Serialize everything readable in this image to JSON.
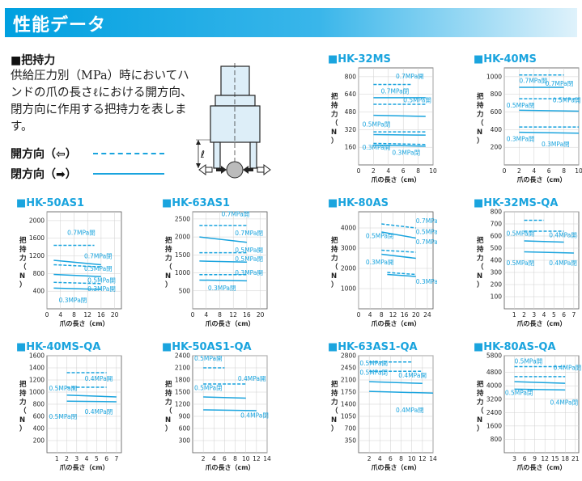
{
  "header": {
    "title": "性能データ"
  },
  "section": {
    "title": "■把持力"
  },
  "description": "供給圧力別（MPa）時においてハンドの爪の長さℓにおける開方向、閉方向に作用する把持力を表します。",
  "legend": {
    "open_label": "開方向（⇦）",
    "close_label": "閉方向（➡）"
  },
  "diagram": {
    "length_symbol": "ℓ"
  },
  "chart_data": [
    {
      "type": "line",
      "title": "■HK-32MS",
      "xlabel": "爪の長さ（cm）",
      "ylabel": "把持力（N）",
      "xlim": [
        0,
        10
      ],
      "ylim": [
        0,
        880
      ],
      "xticks": [
        0,
        2,
        4,
        6,
        8,
        10
      ],
      "yticks": [
        160,
        320,
        480,
        640,
        800
      ],
      "series": [
        {
          "style": "open",
          "x": [
            2,
            7
          ],
          "values": [
            730,
            730
          ]
        },
        {
          "style": "close",
          "x": [
            2,
            9
          ],
          "values": [
            610,
            610
          ]
        },
        {
          "style": "open",
          "x": [
            2,
            9
          ],
          "values": [
            550,
            550
          ]
        },
        {
          "style": "close",
          "x": [
            2,
            9
          ],
          "values": [
            450,
            440
          ]
        },
        {
          "style": "open",
          "x": [
            2,
            9
          ],
          "values": [
            300,
            300
          ]
        },
        {
          "style": "close",
          "x": [
            2,
            9
          ],
          "values": [
            275,
            270
          ]
        },
        {
          "style": "open",
          "x": [
            2,
            9
          ],
          "values": [
            195,
            185
          ]
        },
        {
          "style": "close",
          "x": [
            2,
            9
          ],
          "values": [
            180,
            170
          ]
        }
      ],
      "labels": [
        {
          "text": "0.7MPa開",
          "x": 5,
          "y": 785
        },
        {
          "text": "0.7MPa閉",
          "x": 3,
          "y": 650
        },
        {
          "text": "0.5MPa開",
          "x": 6,
          "y": 570
        },
        {
          "text": "0.5MPa閉",
          "x": 0.5,
          "y": 350
        },
        {
          "text": "0.3MPa開",
          "x": 0.5,
          "y": 140
        },
        {
          "text": "0.3MPa閉",
          "x": 4.5,
          "y": 90
        }
      ]
    },
    {
      "type": "line",
      "title": "■HK-40MS",
      "xlabel": "爪の長さ（cm）",
      "ylabel": "把持力（N）",
      "xlim": [
        0,
        10
      ],
      "ylim": [
        0,
        1100
      ],
      "xticks": [
        0,
        2,
        4,
        6,
        8,
        10
      ],
      "yticks": [
        200,
        400,
        600,
        800,
        1000
      ],
      "series": [
        {
          "style": "open",
          "x": [
            2,
            8
          ],
          "values": [
            1020,
            1020
          ]
        },
        {
          "style": "close",
          "x": [
            2,
            8
          ],
          "values": [
            880,
            880
          ]
        },
        {
          "style": "open",
          "x": [
            2,
            10
          ],
          "values": [
            750,
            750
          ]
        },
        {
          "style": "close",
          "x": [
            2,
            10
          ],
          "values": [
            620,
            610
          ]
        },
        {
          "style": "open",
          "x": [
            2,
            10
          ],
          "values": [
            430,
            430
          ]
        },
        {
          "style": "close",
          "x": [
            2,
            10
          ],
          "values": [
            370,
            360
          ]
        }
      ],
      "labels": [
        {
          "text": "0.7MPa開",
          "x": 2,
          "y": 930
        },
        {
          "text": "0.7MPa閉",
          "x": 5.5,
          "y": 900
        },
        {
          "text": "0.5MPa開",
          "x": 6.5,
          "y": 710
        },
        {
          "text": "0.5MPa閉",
          "x": 0.3,
          "y": 650
        },
        {
          "text": "0.3MPa開",
          "x": 0.3,
          "y": 270
        },
        {
          "text": "0.3MPa閉",
          "x": 5,
          "y": 210
        }
      ]
    },
    {
      "type": "line",
      "title": "■HK-50AS1",
      "xlabel": "爪の長さ（cm）",
      "ylabel": "把持力（N）",
      "xlim": [
        0,
        22
      ],
      "ylim": [
        0,
        2200
      ],
      "xticks": [
        0,
        4,
        8,
        12,
        16,
        20
      ],
      "yticks": [
        400,
        800,
        1200,
        1600,
        2000
      ],
      "series": [
        {
          "style": "open",
          "x": [
            2,
            14
          ],
          "values": [
            1440,
            1440
          ]
        },
        {
          "style": "close",
          "x": [
            2,
            16
          ],
          "values": [
            1100,
            1000
          ]
        },
        {
          "style": "open",
          "x": [
            2,
            16
          ],
          "values": [
            1000,
            950
          ]
        },
        {
          "style": "close",
          "x": [
            2,
            16
          ],
          "values": [
            780,
            730
          ]
        },
        {
          "style": "open",
          "x": [
            2,
            16
          ],
          "values": [
            600,
            570
          ]
        },
        {
          "style": "close",
          "x": [
            2,
            16
          ],
          "values": [
            470,
            440
          ]
        }
      ],
      "labels": [
        {
          "text": "0.7MPa開",
          "x": 6,
          "y": 1680
        },
        {
          "text": "0.7MPa閉",
          "x": 11,
          "y": 1150
        },
        {
          "text": "0.5MPa閉",
          "x": 11,
          "y": 860
        },
        {
          "text": "0.5MPa開",
          "x": 12,
          "y": 600
        },
        {
          "text": "0.3MPa開",
          "x": 12,
          "y": 400
        },
        {
          "text": "0.3MPa閉",
          "x": 3.5,
          "y": 150
        }
      ]
    },
    {
      "type": "line",
      "title": "■HK-63AS1",
      "xlabel": "爪の長さ（cm）",
      "ylabel": "把持力（N）",
      "xlim": [
        0,
        22
      ],
      "ylim": [
        0,
        2700
      ],
      "xticks": [
        0,
        4,
        8,
        12,
        16,
        20
      ],
      "yticks": [
        500,
        1000,
        1500,
        2000,
        2500
      ],
      "series": [
        {
          "style": "open",
          "x": [
            2,
            16
          ],
          "values": [
            2320,
            2320
          ]
        },
        {
          "style": "close",
          "x": [
            2,
            16
          ],
          "values": [
            2000,
            1850
          ]
        },
        {
          "style": "open",
          "x": [
            2,
            16
          ],
          "values": [
            1560,
            1560
          ]
        },
        {
          "style": "close",
          "x": [
            2,
            16
          ],
          "values": [
            1330,
            1300
          ]
        },
        {
          "style": "open",
          "x": [
            2,
            16
          ],
          "values": [
            950,
            950
          ]
        },
        {
          "style": "close",
          "x": [
            2,
            16
          ],
          "values": [
            800,
            780
          ]
        }
      ],
      "labels": [
        {
          "text": "0.7MPa開",
          "x": 8.5,
          "y": 2580
        },
        {
          "text": "0.7MPa閉",
          "x": 12.5,
          "y": 2050
        },
        {
          "text": "0.5MPa開",
          "x": 12.5,
          "y": 1580
        },
        {
          "text": "0.5MPa閉",
          "x": 12.5,
          "y": 1330
        },
        {
          "text": "0.3MPa開",
          "x": 12.5,
          "y": 950
        },
        {
          "text": "0.3MPa閉",
          "x": 4.5,
          "y": 520
        }
      ]
    },
    {
      "type": "line",
      "title": "■HK-80AS",
      "xlabel": "爪の長さ（cm）",
      "ylabel": "把持力（N）",
      "xlim": [
        0,
        26
      ],
      "ylim": [
        0,
        4800
      ],
      "xticks": [
        0,
        4,
        8,
        12,
        16,
        20,
        24
      ],
      "yticks": [
        1000,
        2000,
        3000,
        4000
      ],
      "series": [
        {
          "style": "open",
          "x": [
            8,
            20
          ],
          "values": [
            4200,
            4000
          ]
        },
        {
          "style": "close",
          "x": [
            8,
            20
          ],
          "values": [
            3800,
            3500
          ]
        },
        {
          "style": "open",
          "x": [
            8,
            20
          ],
          "values": [
            2900,
            2800
          ]
        },
        {
          "style": "close",
          "x": [
            8,
            20
          ],
          "values": [
            2700,
            2500
          ]
        },
        {
          "style": "open",
          "x": [
            10,
            20
          ],
          "values": [
            1800,
            1700
          ]
        },
        {
          "style": "close",
          "x": [
            10,
            20
          ],
          "values": [
            1700,
            1600
          ]
        }
      ],
      "labels": [
        {
          "text": "0.7MPa開",
          "x": 20,
          "y": 4250
        },
        {
          "text": "0.5MPa開",
          "x": 20,
          "y": 3700
        },
        {
          "text": "0.5MPa閉",
          "x": 2.5,
          "y": 3500
        },
        {
          "text": "0.7MPa閉",
          "x": 20,
          "y": 3200
        },
        {
          "text": "0.3MPa開",
          "x": 2.5,
          "y": 2200
        },
        {
          "text": "0.3MPa閉",
          "x": 20,
          "y": 1250
        }
      ]
    },
    {
      "type": "line",
      "title": "■HK-32MS-QA",
      "xlabel": "爪の長さ（cm）",
      "ylabel": "把持力（N）",
      "xlim": [
        0,
        7.5
      ],
      "ylim": [
        0,
        800
      ],
      "xticks": [
        1,
        2,
        3,
        4,
        5,
        6,
        7
      ],
      "yticks": [
        100,
        200,
        300,
        400,
        500,
        600,
        700,
        800
      ],
      "series": [
        {
          "style": "open",
          "x": [
            2,
            4
          ],
          "values": [
            730,
            730
          ]
        },
        {
          "style": "open",
          "x": [
            2,
            6
          ],
          "values": [
            640,
            640
          ]
        },
        {
          "style": "close",
          "x": [
            2,
            6
          ],
          "values": [
            560,
            550
          ]
        },
        {
          "style": "close",
          "x": [
            2,
            7
          ],
          "values": [
            470,
            460
          ]
        }
      ],
      "labels": [
        {
          "text": "0.5MPa開",
          "x": 0.2,
          "y": 605
        },
        {
          "text": "0.4MPa開",
          "x": 4.5,
          "y": 590
        },
        {
          "text": "0.5MPa閉",
          "x": 0.2,
          "y": 360
        },
        {
          "text": "0.4MPa閉",
          "x": 4.5,
          "y": 360
        }
      ]
    },
    {
      "type": "line",
      "title": "■HK-40MS-QA",
      "xlabel": "爪の長さ（cm）",
      "ylabel": "把持力（N）",
      "xlim": [
        0,
        7.5
      ],
      "ylim": [
        0,
        1600
      ],
      "xticks": [
        1,
        2,
        3,
        4,
        5,
        6,
        7
      ],
      "yticks": [
        200,
        400,
        600,
        800,
        1000,
        1200,
        1400,
        1600
      ],
      "series": [
        {
          "style": "open",
          "x": [
            2,
            6
          ],
          "values": [
            1320,
            1320
          ]
        },
        {
          "style": "open",
          "x": [
            2,
            6
          ],
          "values": [
            1080,
            1080
          ]
        },
        {
          "style": "close",
          "x": [
            2,
            7
          ],
          "values": [
            950,
            920
          ]
        },
        {
          "style": "close",
          "x": [
            2,
            7
          ],
          "values": [
            850,
            840
          ]
        }
      ],
      "labels": [
        {
          "text": "0.4MPa開",
          "x": 3.8,
          "y": 1190
        },
        {
          "text": "0.5MPa開",
          "x": 0.2,
          "y": 1030
        },
        {
          "text": "0.4MPa閉",
          "x": 3.8,
          "y": 640
        },
        {
          "text": "0.5MPa閉",
          "x": 0.2,
          "y": 560
        }
      ]
    },
    {
      "type": "line",
      "title": "■HK-50AS1-QA",
      "xlabel": "爪の長さ（cm）",
      "ylabel": "把持力（N）",
      "xlim": [
        0,
        14
      ],
      "ylim": [
        0,
        2400
      ],
      "xticks": [
        2,
        4,
        6,
        8,
        10,
        12,
        14
      ],
      "yticks": [
        300,
        600,
        900,
        1200,
        1500,
        1800,
        2100,
        2400
      ],
      "series": [
        {
          "style": "open",
          "x": [
            2,
            6
          ],
          "values": [
            2100,
            2100
          ]
        },
        {
          "style": "open",
          "x": [
            2,
            10
          ],
          "values": [
            1700,
            1700
          ]
        },
        {
          "style": "close",
          "x": [
            2,
            10
          ],
          "values": [
            1380,
            1350
          ]
        },
        {
          "style": "close",
          "x": [
            2,
            12
          ],
          "values": [
            1060,
            1040
          ]
        }
      ],
      "labels": [
        {
          "text": "0.5MPa開",
          "x": 0.3,
          "y": 2280
        },
        {
          "text": "0.4MPa開",
          "x": 8.5,
          "y": 1780
        },
        {
          "text": "0.5MPa閉",
          "x": 0.3,
          "y": 1550
        },
        {
          "text": "0.4MPa閉",
          "x": 9,
          "y": 870
        }
      ]
    },
    {
      "type": "line",
      "title": "■HK-63AS1-QA",
      "xlabel": "爪の長さ（cm）",
      "ylabel": "把持力（N）",
      "xlim": [
        0,
        14
      ],
      "ylim": [
        0,
        2800
      ],
      "xticks": [
        2,
        4,
        6,
        8,
        10,
        12,
        14
      ],
      "yticks": [
        350,
        700,
        1050,
        1400,
        1750,
        2100,
        2450,
        2800
      ],
      "series": [
        {
          "style": "open",
          "x": [
            2,
            10
          ],
          "values": [
            2620,
            2620
          ]
        },
        {
          "style": "open",
          "x": [
            2,
            12
          ],
          "values": [
            2350,
            2350
          ]
        },
        {
          "style": "close",
          "x": [
            2,
            12
          ],
          "values": [
            2050,
            2000
          ]
        },
        {
          "style": "close",
          "x": [
            2,
            14
          ],
          "values": [
            1770,
            1720
          ]
        }
      ],
      "labels": [
        {
          "text": "0.5MPa開",
          "x": 0.2,
          "y": 2520
        },
        {
          "text": "0.5MPa閉",
          "x": 0.2,
          "y": 2250
        },
        {
          "text": "0.4MPa開",
          "x": 7.5,
          "y": 2170
        },
        {
          "text": "0.4MPa閉",
          "x": 7,
          "y": 1170
        }
      ]
    },
    {
      "type": "line",
      "title": "■HK-80AS-QA",
      "xlabel": "爪の長さ（cm）",
      "ylabel": "把持力（N）",
      "xlim": [
        0,
        22
      ],
      "ylim": [
        0,
        5800
      ],
      "xticks": [
        3,
        6,
        9,
        12,
        15,
        18,
        21
      ],
      "yticks": [
        800,
        1600,
        2400,
        3200,
        4000,
        4800,
        5800
      ],
      "series": [
        {
          "style": "open",
          "x": [
            3,
            18
          ],
          "values": [
            5150,
            5150
          ]
        },
        {
          "style": "open",
          "x": [
            3,
            18
          ],
          "values": [
            4550,
            4550
          ]
        },
        {
          "style": "close",
          "x": [
            3,
            18
          ],
          "values": [
            4250,
            4150
          ]
        },
        {
          "style": "close",
          "x": [
            3,
            18
          ],
          "values": [
            3800,
            3750
          ]
        }
      ],
      "labels": [
        {
          "text": "0.5MPa開",
          "x": 3,
          "y": 5350
        },
        {
          "text": "0.4MPa開",
          "x": 14.5,
          "y": 4950
        },
        {
          "text": "0.5MPa閉",
          "x": 0.2,
          "y": 3450
        },
        {
          "text": "0.4MPa閉",
          "x": 13.5,
          "y": 2880
        }
      ]
    }
  ]
}
